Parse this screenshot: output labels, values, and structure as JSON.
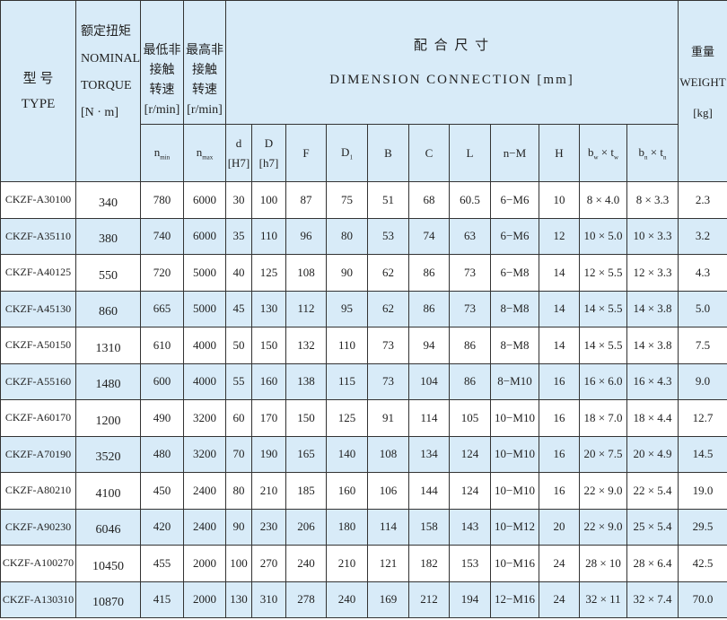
{
  "header": {
    "type_cn": "型 号",
    "type_en": "TYPE",
    "torque_cn": "额定扭矩",
    "torque_en1": "NOMINAL",
    "torque_en2": "TORQUE",
    "torque_unit": "[N · m]",
    "min_speed_cn1": "最低非",
    "min_speed_cn2": "接触",
    "min_speed_cn3": "转速",
    "min_speed_unit": "[r/min]",
    "max_speed_cn1": "最高非",
    "max_speed_cn2": "接触",
    "max_speed_cn3": "转速",
    "max_speed_unit": "[r/min]",
    "dim_cn": "配 合 尺 寸",
    "dim_en": "DIMENSION CONNECTION [mm]",
    "weight_cn": "重量",
    "weight_en": "WEIGHT",
    "weight_unit": "[kg]",
    "nmin": {
      "main": "n",
      "sub": "min"
    },
    "nmax": {
      "main": "n",
      "sub": "max"
    },
    "d": {
      "main": "d",
      "tol": "[H7]"
    },
    "D": {
      "main": "D",
      "tol": "[h7]"
    },
    "F": "F",
    "D1": {
      "main": "D",
      "sub": "1"
    },
    "B": "B",
    "C": "C",
    "L": "L",
    "nM": "n−M",
    "H": "H",
    "bwtw": {
      "b": "b",
      "bs": "w",
      "x": " × ",
      "t": "t",
      "ts": "w"
    },
    "bntn": {
      "b": "b",
      "bs": "n",
      "x": " × ",
      "t": "t",
      "ts": "n"
    }
  },
  "rows": [
    [
      "CKZF-A30100",
      "340",
      "780",
      "6000",
      "30",
      "100",
      "87",
      "75",
      "51",
      "68",
      "60.5",
      "6−M6",
      "10",
      "8 × 4.0",
      "8 × 3.3",
      "2.3"
    ],
    [
      "CKZF-A35110",
      "380",
      "740",
      "6000",
      "35",
      "110",
      "96",
      "80",
      "53",
      "74",
      "63",
      "6−M6",
      "12",
      "10 × 5.0",
      "10 × 3.3",
      "3.2"
    ],
    [
      "CKZF-A40125",
      "550",
      "720",
      "5000",
      "40",
      "125",
      "108",
      "90",
      "62",
      "86",
      "73",
      "6−M8",
      "14",
      "12 × 5.5",
      "12 × 3.3",
      "4.3"
    ],
    [
      "CKZF-A45130",
      "860",
      "665",
      "5000",
      "45",
      "130",
      "112",
      "95",
      "62",
      "86",
      "73",
      "8−M8",
      "14",
      "14 × 5.5",
      "14 × 3.8",
      "5.0"
    ],
    [
      "CKZF-A50150",
      "1310",
      "610",
      "4000",
      "50",
      "150",
      "132",
      "110",
      "73",
      "94",
      "86",
      "8−M8",
      "14",
      "14 × 5.5",
      "14 × 3.8",
      "7.5"
    ],
    [
      "CKZF-A55160",
      "1480",
      "600",
      "4000",
      "55",
      "160",
      "138",
      "115",
      "73",
      "104",
      "86",
      "8−M10",
      "16",
      "16 × 6.0",
      "16 × 4.3",
      "9.0"
    ],
    [
      "CKZF-A60170",
      "1200",
      "490",
      "3200",
      "60",
      "170",
      "150",
      "125",
      "91",
      "114",
      "105",
      "10−M10",
      "16",
      "18 × 7.0",
      "18 × 4.4",
      "12.7"
    ],
    [
      "CKZF-A70190",
      "3520",
      "480",
      "3200",
      "70",
      "190",
      "165",
      "140",
      "108",
      "134",
      "124",
      "10−M10",
      "16",
      "20 × 7.5",
      "20 × 4.9",
      "14.5"
    ],
    [
      "CKZF-A80210",
      "4100",
      "450",
      "2400",
      "80",
      "210",
      "185",
      "160",
      "106",
      "144",
      "124",
      "10−M10",
      "16",
      "22 × 9.0",
      "22 × 5.4",
      "19.0"
    ],
    [
      "CKZF-A90230",
      "6046",
      "420",
      "2400",
      "90",
      "230",
      "206",
      "180",
      "114",
      "158",
      "143",
      "10−M12",
      "20",
      "22 × 9.0",
      "25 × 5.4",
      "29.5"
    ],
    [
      "CKZF-A100270",
      "10450",
      "455",
      "2000",
      "100",
      "270",
      "240",
      "210",
      "121",
      "182",
      "153",
      "10−M16",
      "24",
      "28 × 10",
      "28 × 6.4",
      "42.5"
    ],
    [
      "CKZF-A130310",
      "10870",
      "415",
      "2000",
      "130",
      "310",
      "278",
      "240",
      "169",
      "212",
      "194",
      "12−M16",
      "24",
      "32 × 11",
      "32 × 7.4",
      "70.0"
    ]
  ]
}
